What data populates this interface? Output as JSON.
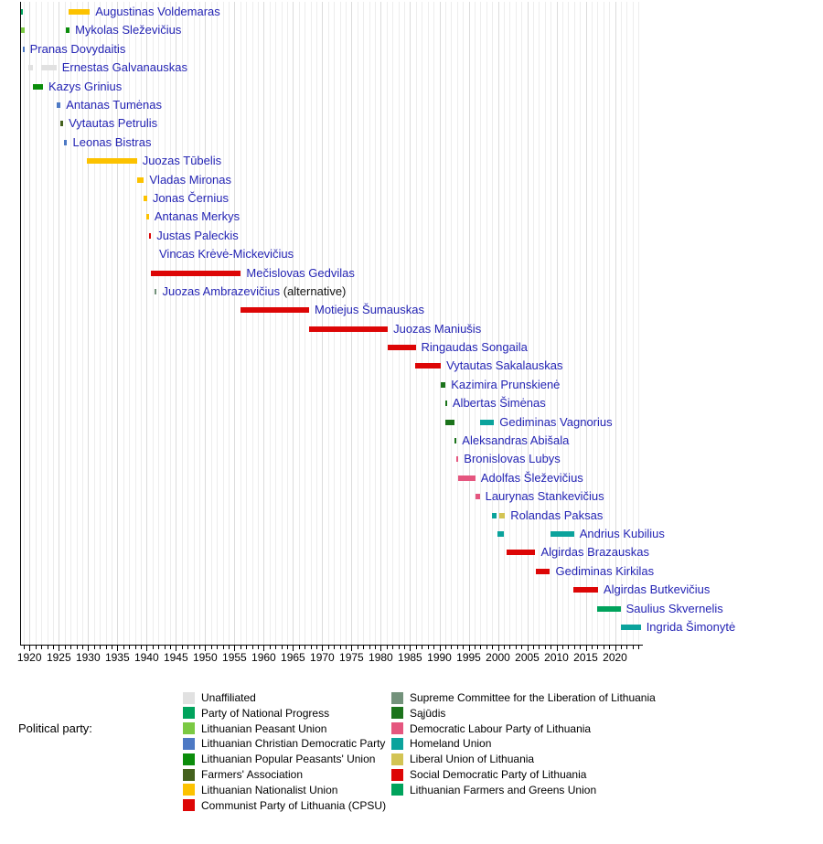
{
  "legend": {
    "title": "Political party:",
    "columns": [
      [
        "unaffiliated",
        "pnp",
        "lpu",
        "lcdp",
        "lppu",
        "farmers",
        "lnu",
        "cpl"
      ],
      [
        "scll",
        "sajudis",
        "dlp",
        "homeland",
        "liberal",
        "sdp",
        "farmers_greens"
      ]
    ]
  },
  "chart_data": {
    "type": "timeline",
    "x_axis": {
      "unit": "year",
      "range_start": 1918.4,
      "range_end": 2024.6,
      "tick_years": [
        1920,
        1925,
        1930,
        1935,
        1940,
        1945,
        1950,
        1955,
        1960,
        1965,
        1970,
        1975,
        1980,
        1985,
        1990,
        1995,
        2000,
        2005,
        2010,
        2015,
        2020
      ],
      "minor_tick_interval": 1,
      "grid": "on"
    },
    "parties": {
      "unaffiliated": {
        "label": "Unaffiliated",
        "color": "#e1e1e1"
      },
      "pnp": {
        "label": "Party of National Progress",
        "color": "#00a35c"
      },
      "lpu": {
        "label": "Lithuanian Peasant Union",
        "color": "#7bc943"
      },
      "lcdp": {
        "label": "Lithuanian Christian Democratic Party",
        "color": "#4d79c4"
      },
      "lppu": {
        "label": "Lithuanian Popular Peasants' Union",
        "color": "#0b8d0b"
      },
      "farmers": {
        "label": "Farmers' Association",
        "color": "#44611d"
      },
      "lnu": {
        "label": "Lithuanian Nationalist Union",
        "color": "#fcc200"
      },
      "cpl": {
        "label": "Communist Party of Lithuania (CPSU)",
        "color": "#dd0606"
      },
      "scll": {
        "label": "Supreme Committee for the Liberation of Lithuania",
        "color": "#73927b"
      },
      "sajudis": {
        "label": "Sąjūdis",
        "color": "#1b731b"
      },
      "dlp": {
        "label": "Democratic Labour Party of Lithuania",
        "color": "#e5567f"
      },
      "homeland": {
        "label": "Homeland Union",
        "color": "#0ba39c"
      },
      "liberal": {
        "label": "Liberal Union of Lithuania",
        "color": "#d3c454"
      },
      "sdp": {
        "label": "Social Democratic Party of Lithuania",
        "color": "#dd0606"
      },
      "farmers_greens": {
        "label": "Lithuanian Farmers and Greens Union",
        "color": "#00a35c"
      }
    },
    "people": [
      {
        "name": "Augustinas Voldemaras",
        "terms": [
          {
            "start": 1918.5,
            "end": 1918.8,
            "party": "pnp"
          },
          {
            "start": 1926.7,
            "end": 1930.3,
            "party": "lnu"
          }
        ]
      },
      {
        "name": "Mykolas Sleževičius",
        "terms": [
          {
            "start": 1918.45,
            "end": 1919.25,
            "party": "lpu"
          },
          {
            "start": 1926.2,
            "end": 1926.85,
            "party": "lppu"
          }
        ]
      },
      {
        "name": "Pranas Dovydaitis",
        "terms": [
          {
            "start": 1918.8,
            "end": 1919.1,
            "party": "lcdp"
          }
        ]
      },
      {
        "name": "Ernestas Galvanauskas",
        "terms": [
          {
            "start": 1919.85,
            "end": 1920.6,
            "party": "unaffiliated"
          },
          {
            "start": 1922.0,
            "end": 1924.6,
            "party": "unaffiliated"
          }
        ]
      },
      {
        "name": "Kazys Grinius",
        "terms": [
          {
            "start": 1920.55,
            "end": 1922.3,
            "party": "lppu"
          }
        ]
      },
      {
        "name": "Antanas Tumėnas",
        "terms": [
          {
            "start": 1924.7,
            "end": 1925.3,
            "party": "lcdp"
          }
        ]
      },
      {
        "name": "Vytautas Petrulis",
        "terms": [
          {
            "start": 1925.2,
            "end": 1925.75,
            "party": "farmers"
          }
        ]
      },
      {
        "name": "Leonas Bistras",
        "terms": [
          {
            "start": 1925.85,
            "end": 1926.45,
            "party": "lcdp"
          }
        ]
      },
      {
        "name": "Juozas Tūbelis",
        "terms": [
          {
            "start": 1929.8,
            "end": 1938.35,
            "party": "lnu"
          }
        ]
      },
      {
        "name": "Vladas Mironas",
        "terms": [
          {
            "start": 1938.35,
            "end": 1939.55,
            "party": "lnu"
          }
        ]
      },
      {
        "name": "Jonas Černius",
        "terms": [
          {
            "start": 1939.5,
            "end": 1940.1,
            "party": "lnu"
          }
        ]
      },
      {
        "name": "Antanas Merkys",
        "terms": [
          {
            "start": 1939.95,
            "end": 1940.4,
            "party": "lnu"
          }
        ]
      },
      {
        "name": "Justas Paleckis",
        "terms": [
          {
            "start": 1940.45,
            "end": 1940.7,
            "party": "cpl"
          }
        ]
      },
      {
        "name": "Vincas Krėvė-Mickevičius",
        "terms": [],
        "label_year": 1941.2
      },
      {
        "name": "Mečislovas Gedvilas",
        "terms": [
          {
            "start": 1940.65,
            "end": 1956.1,
            "party": "cpl"
          }
        ]
      },
      {
        "name": "Juozas Ambrazevičius",
        "suffix": " (alternative)",
        "terms": [
          {
            "start": 1941.3,
            "end": 1941.75,
            "party": "scll"
          }
        ]
      },
      {
        "name": "Motiejus Šumauskas",
        "terms": [
          {
            "start": 1956.1,
            "end": 1967.75,
            "party": "cpl"
          }
        ]
      },
      {
        "name": "Juozas Maniušis",
        "terms": [
          {
            "start": 1967.75,
            "end": 1981.2,
            "party": "cpl"
          }
        ]
      },
      {
        "name": "Ringaudas Songaila",
        "terms": [
          {
            "start": 1981.1,
            "end": 1985.95,
            "party": "cpl"
          }
        ]
      },
      {
        "name": "Vytautas Sakalauskas",
        "terms": [
          {
            "start": 1985.8,
            "end": 1990.25,
            "party": "cpl"
          }
        ]
      },
      {
        "name": "Kazimira Prunskienė",
        "terms": [
          {
            "start": 1990.2,
            "end": 1991.05,
            "party": "sajudis"
          }
        ]
      },
      {
        "name": "Albertas Šimėnas",
        "terms": [
          {
            "start": 1991.0,
            "end": 1991.1,
            "party": "sajudis"
          }
        ]
      },
      {
        "name": "Gediminas Vagnorius",
        "terms": [
          {
            "start": 1991.05,
            "end": 1992.55,
            "party": "sajudis"
          },
          {
            "start": 1996.9,
            "end": 1999.35,
            "party": "homeland"
          }
        ]
      },
      {
        "name": "Aleksandras Abišala",
        "terms": [
          {
            "start": 1992.55,
            "end": 1992.95,
            "party": "sajudis"
          }
        ]
      },
      {
        "name": "Bronislovas Lubys",
        "terms": [
          {
            "start": 1992.95,
            "end": 1993.25,
            "party": "dlp"
          }
        ]
      },
      {
        "name": "Adolfas Šleževičius",
        "terms": [
          {
            "start": 1993.25,
            "end": 1996.15,
            "party": "dlp"
          }
        ]
      },
      {
        "name": "Laurynas Stankevičius",
        "terms": [
          {
            "start": 1996.15,
            "end": 1996.9,
            "party": "dlp"
          }
        ]
      },
      {
        "name": "Rolandas Paksas",
        "terms": [
          {
            "start": 1998.95,
            "end": 1999.7,
            "party": "homeland"
          },
          {
            "start": 2000.3,
            "end": 2001.2,
            "party": "liberal"
          }
        ]
      },
      {
        "name": "Andrius Kubilius",
        "terms": [
          {
            "start": 1999.85,
            "end": 2000.95,
            "party": "homeland"
          },
          {
            "start": 2009.0,
            "end": 2013.0,
            "party": "homeland"
          }
        ]
      },
      {
        "name": "Algirdas Brazauskas",
        "terms": [
          {
            "start": 2001.5,
            "end": 2006.4,
            "party": "sdp"
          }
        ]
      },
      {
        "name": "Gediminas Kirkilas",
        "terms": [
          {
            "start": 2006.5,
            "end": 2008.9,
            "party": "sdp"
          }
        ]
      },
      {
        "name": "Algirdas Butkevičius",
        "terms": [
          {
            "start": 2012.9,
            "end": 2017.1,
            "party": "sdp"
          }
        ]
      },
      {
        "name": "Saulius Skvernelis",
        "terms": [
          {
            "start": 2017.0,
            "end": 2020.95,
            "party": "farmers_greens"
          }
        ]
      },
      {
        "name": "Ingrida Šimonytė",
        "terms": [
          {
            "start": 2021.0,
            "end": 2024.4,
            "party": "homeland"
          }
        ]
      }
    ]
  }
}
